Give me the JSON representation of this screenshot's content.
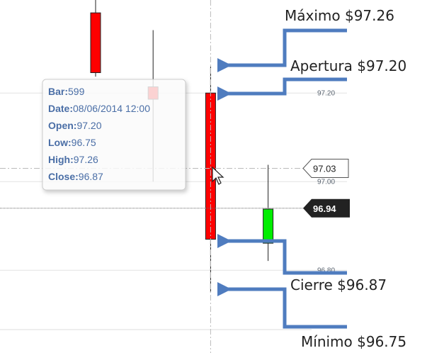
{
  "chart_data": {
    "type": "candlestick",
    "categories": [
      null,
      null,
      null,
      null
    ],
    "open": [
      97.381,
      97.214,
      97.2,
      96.861
    ],
    "high": [
      97.42,
      97.342,
      97.26,
      97.038
    ],
    "low": [
      97.237,
      97.0,
      96.75,
      96.821
    ],
    "close": [
      97.246,
      97.186,
      96.87,
      96.938
    ],
    "up_color": "#00ee00",
    "down_color": "#ff0000",
    "ylim": [
      96.666,
      97.41
    ],
    "yticks": [
      {
        "value": 97.2,
        "label": "97.20"
      },
      {
        "value": 97.0,
        "label": "97.00"
      },
      {
        "value": 96.8,
        "label": "96.80"
      }
    ],
    "grid": true,
    "crosshair": {
      "value": 97.03,
      "label": "97.03"
    },
    "last_price": {
      "value": 96.94,
      "label": "96.94"
    },
    "tooltip": {
      "rows": [
        {
          "label": "Bar:",
          "value": "599"
        },
        {
          "label": "Date:",
          "value": "08/06/2014 12:00"
        },
        {
          "label": "Open:",
          "value": "97.20"
        },
        {
          "label": "Low:",
          "value": "96.75"
        },
        {
          "label": "High:",
          "value": "97.26"
        },
        {
          "label": "Close:",
          "value": "96.87"
        }
      ]
    },
    "annotations": [
      "Máximo $97.26",
      "Apertura $97.20",
      "Cierre $96.87",
      "Mínimo $96.75"
    ]
  }
}
